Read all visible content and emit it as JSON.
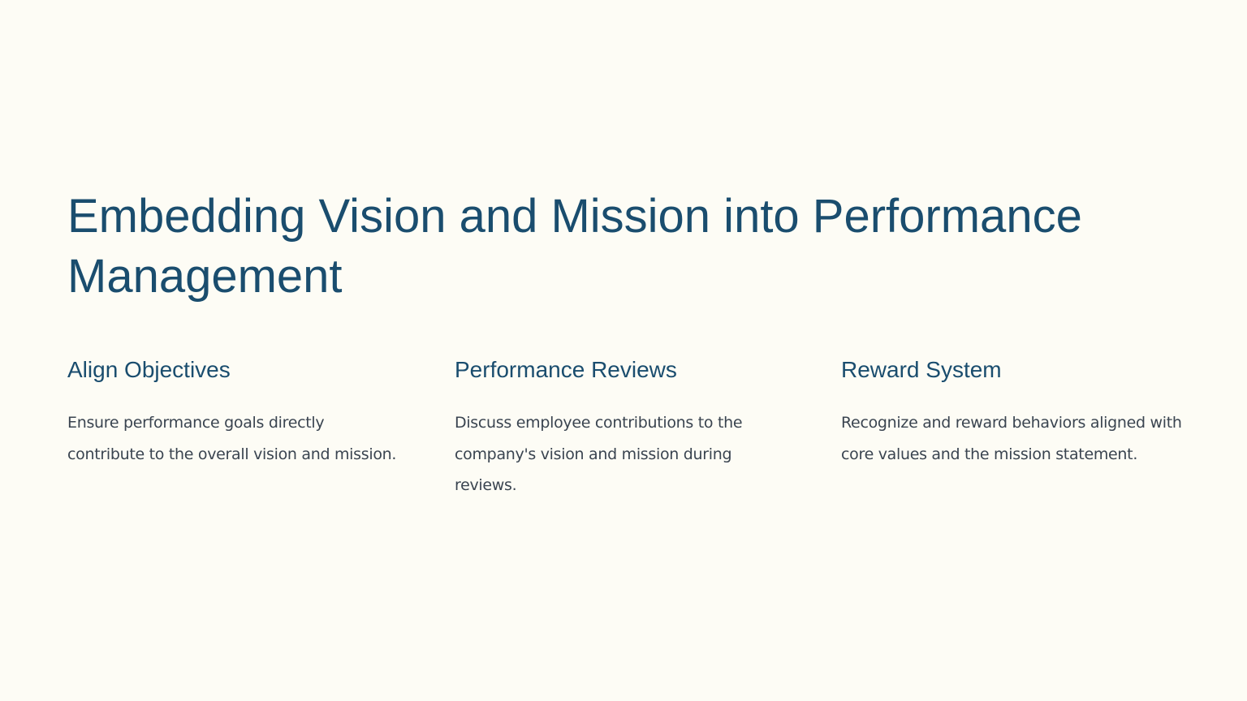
{
  "slide": {
    "title": "Embedding Vision and Mission into Performance Management",
    "colors": {
      "background": "#fdfcf5",
      "heading": "#1a4d6e",
      "body": "#3a4450"
    },
    "columns": [
      {
        "heading": "Align Objectives",
        "text": "Ensure performance goals directly contribute to the overall vision and mission."
      },
      {
        "heading": "Performance Reviews",
        "text": "Discuss employee contributions to the company's vision and mission during reviews."
      },
      {
        "heading": "Reward System",
        "text": "Recognize and reward behaviors aligned with core values and the mission statement."
      }
    ]
  }
}
